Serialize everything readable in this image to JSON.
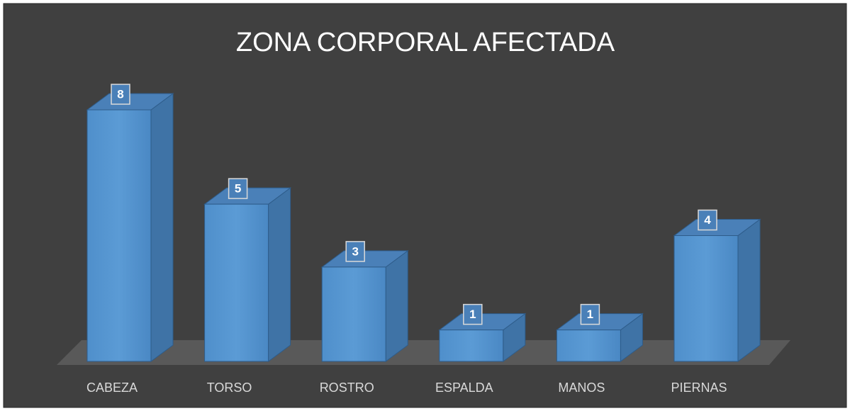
{
  "chart_data": {
    "type": "bar3d",
    "title": "ZONA CORPORAL AFECTADA",
    "categories": [
      "CABEZA",
      "TORSO",
      "ROSTRO",
      "ESPALDA",
      "MANOS",
      "PIERNAS"
    ],
    "values": [
      8,
      5,
      3,
      1,
      1,
      4
    ],
    "color": "#5b9bd5"
  }
}
